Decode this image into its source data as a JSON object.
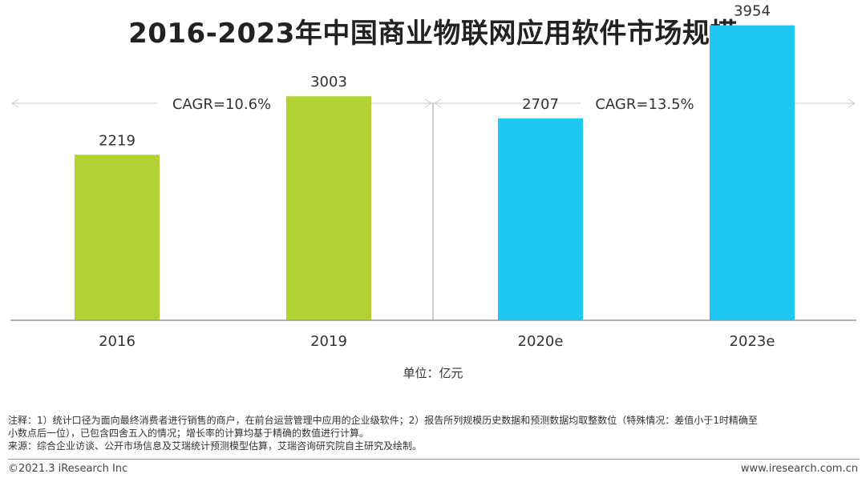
{
  "title": "2016-2023年中国商业物联网应用软件市场规模",
  "unit_label": "单位：亿元",
  "notes": {
    "line1": "注释：1）统计口径为面向最终消费者进行销售的商户，在前台运营管理中应用的企业级软件；2）报告所列规模历史数据和预测数据均取整数位（特殊情况：差值小于1时精确至",
    "line2": "小数点后一位），已包含四舍五入的情况；增长率的计算均基于精确的数值进行计算。",
    "source": "来源：综合企业访谈、公开市场信息及艾瑞统计预测模型估算，艾瑞咨询研究院自主研究及绘制。"
  },
  "footer": {
    "copyright": "©2021.3 iResearch Inc",
    "website": "www.iresearch.com.cn"
  },
  "colors": {
    "historical": "#b3d335",
    "forecast": "#1fc8f0",
    "axis": "#999999",
    "annotation": "#cccccc"
  },
  "chart_data": {
    "type": "bar",
    "categories": [
      "2016",
      "2019",
      "2020e",
      "2023e"
    ],
    "values": [
      2219,
      3003,
      2707,
      3954
    ],
    "series_colors": [
      "#b3d335",
      "#b3d335",
      "#1fc8f0",
      "#1fc8f0"
    ],
    "ylim": [
      0,
      4100
    ],
    "grid": false,
    "annotations": [
      {
        "label": "CAGR=10.6%",
        "from": "2016",
        "to": "2019"
      },
      {
        "label": "CAGR=13.5%",
        "from": "2020e",
        "to": "2023e"
      }
    ]
  }
}
